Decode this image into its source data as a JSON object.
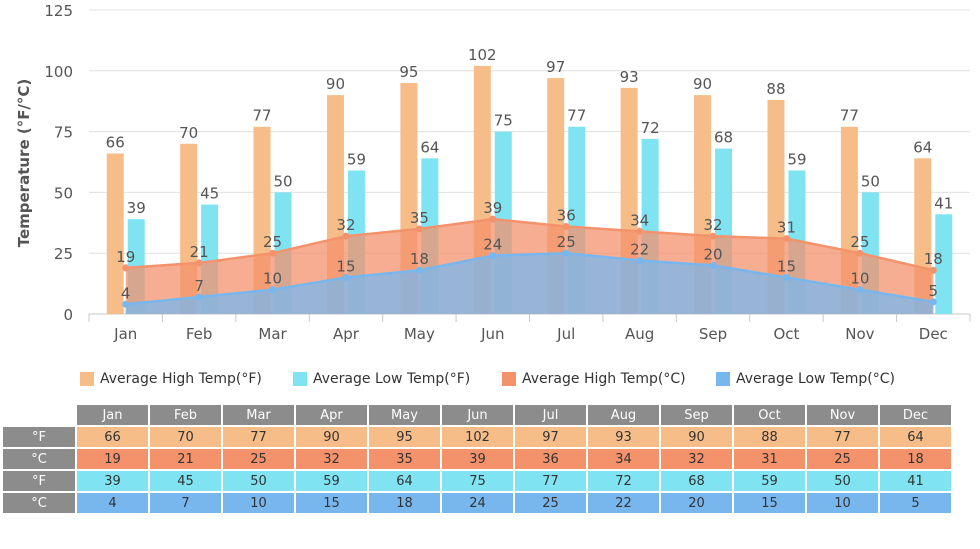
{
  "chart_data": {
    "type": "bar",
    "ylabel": "Temperature (°F/°C)",
    "ylim": [
      0,
      125
    ],
    "yticks": [
      0,
      25,
      50,
      75,
      100,
      125
    ],
    "grid": true,
    "legend_position": "bottom",
    "categories": [
      "Jan",
      "Feb",
      "Mar",
      "Apr",
      "May",
      "Jun",
      "Jul",
      "Aug",
      "Sep",
      "Oct",
      "Nov",
      "Dec"
    ],
    "series": [
      {
        "name": "Average High Temp(°F)",
        "type": "bar",
        "color": "#f6bd89",
        "values": [
          66,
          70,
          77,
          90,
          95,
          102,
          97,
          93,
          90,
          88,
          77,
          64
        ]
      },
      {
        "name": "Average Low Temp(°F)",
        "type": "bar",
        "color": "#7fe3f2",
        "values": [
          39,
          45,
          50,
          59,
          64,
          75,
          77,
          72,
          68,
          59,
          50,
          41
        ]
      },
      {
        "name": "Average High Temp(°C)",
        "type": "area",
        "color": "#f4926c",
        "values": [
          19,
          21,
          25,
          32,
          35,
          39,
          36,
          34,
          32,
          31,
          25,
          18
        ]
      },
      {
        "name": "Average Low Temp(°C)",
        "type": "area",
        "color": "#78b7ee",
        "values": [
          4,
          7,
          10,
          15,
          18,
          24,
          25,
          22,
          20,
          15,
          10,
          5
        ]
      }
    ]
  },
  "table": {
    "row_labels": [
      "°F",
      "°C",
      "°F",
      "°C"
    ]
  }
}
